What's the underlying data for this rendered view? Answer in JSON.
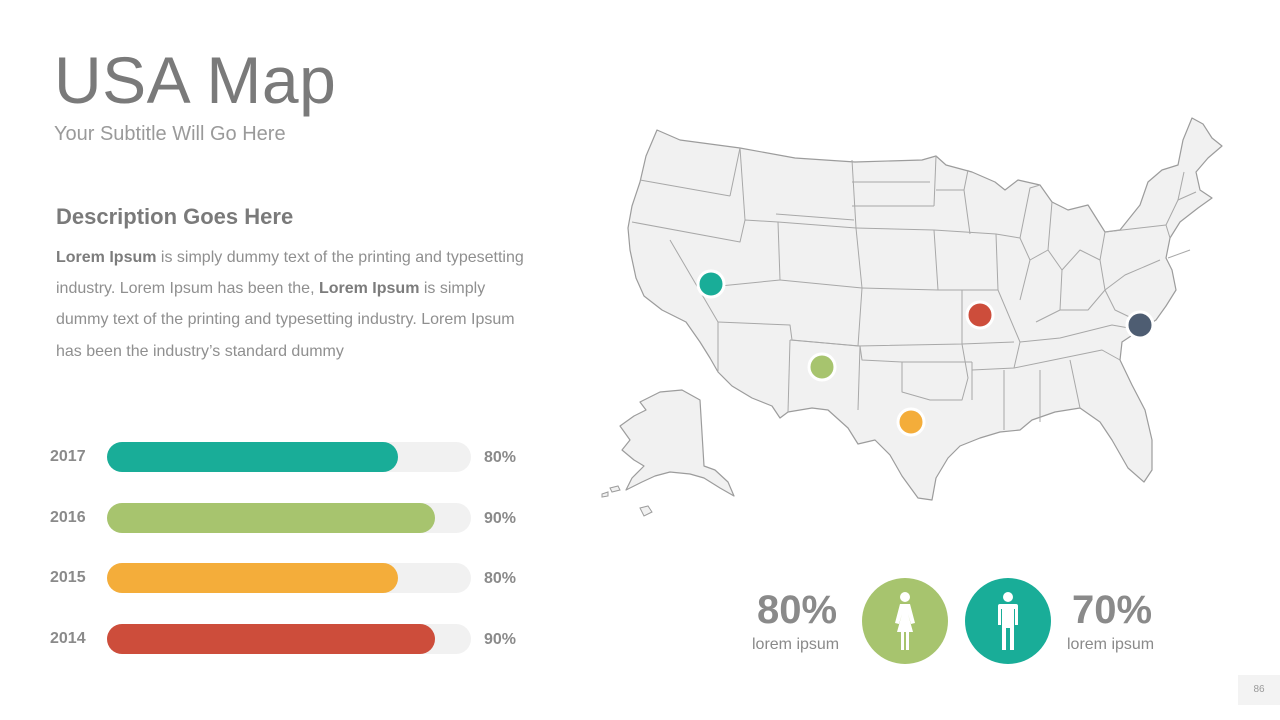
{
  "header": {
    "title": "USA Map",
    "subtitle": "Your Subtitle Will Go Here"
  },
  "description": {
    "heading": "Description Goes Here",
    "parts": [
      {
        "bold": true,
        "text": "Lorem Ipsum"
      },
      {
        "bold": false,
        "text": " is simply dummy text of the printing and typesetting industry. Lorem Ipsum has been the, "
      },
      {
        "bold": true,
        "text": "Lorem Ipsum"
      },
      {
        "bold": false,
        "text": " is simply dummy text of the printing and typesetting industry. Lorem Ipsum has been the industry’s standard dummy"
      }
    ]
  },
  "bars": [
    {
      "year": "2017",
      "value": 0.8,
      "label": "80%",
      "color": "#19ad98"
    },
    {
      "year": "2016",
      "value": 0.9,
      "label": "90%",
      "color": "#a7c46e"
    },
    {
      "year": "2015",
      "value": 0.8,
      "label": "80%",
      "color": "#f4ad3a"
    },
    {
      "year": "2014",
      "value": 0.9,
      "label": "90%",
      "color": "#cd4d3b"
    }
  ],
  "map": {
    "fill": "#f1f1f1",
    "stroke": "#9c9c9c",
    "markers": [
      {
        "name": "nevada-marker",
        "color": "#19ad98"
      },
      {
        "name": "new-mexico-marker",
        "color": "#a7c46e"
      },
      {
        "name": "texas-marker",
        "color": "#f4ad3a"
      },
      {
        "name": "missouri-marker",
        "color": "#cd4d3b"
      },
      {
        "name": "north-carolina-marker",
        "color": "#4e5d72"
      }
    ]
  },
  "stats": {
    "female": {
      "value": "80%",
      "label": "lorem ipsum",
      "color": "#a7c46e",
      "icon": "female-icon"
    },
    "male": {
      "value": "70%",
      "label": "lorem ipsum",
      "color": "#19ad98",
      "icon": "male-icon"
    }
  },
  "page": {
    "number": "86"
  }
}
